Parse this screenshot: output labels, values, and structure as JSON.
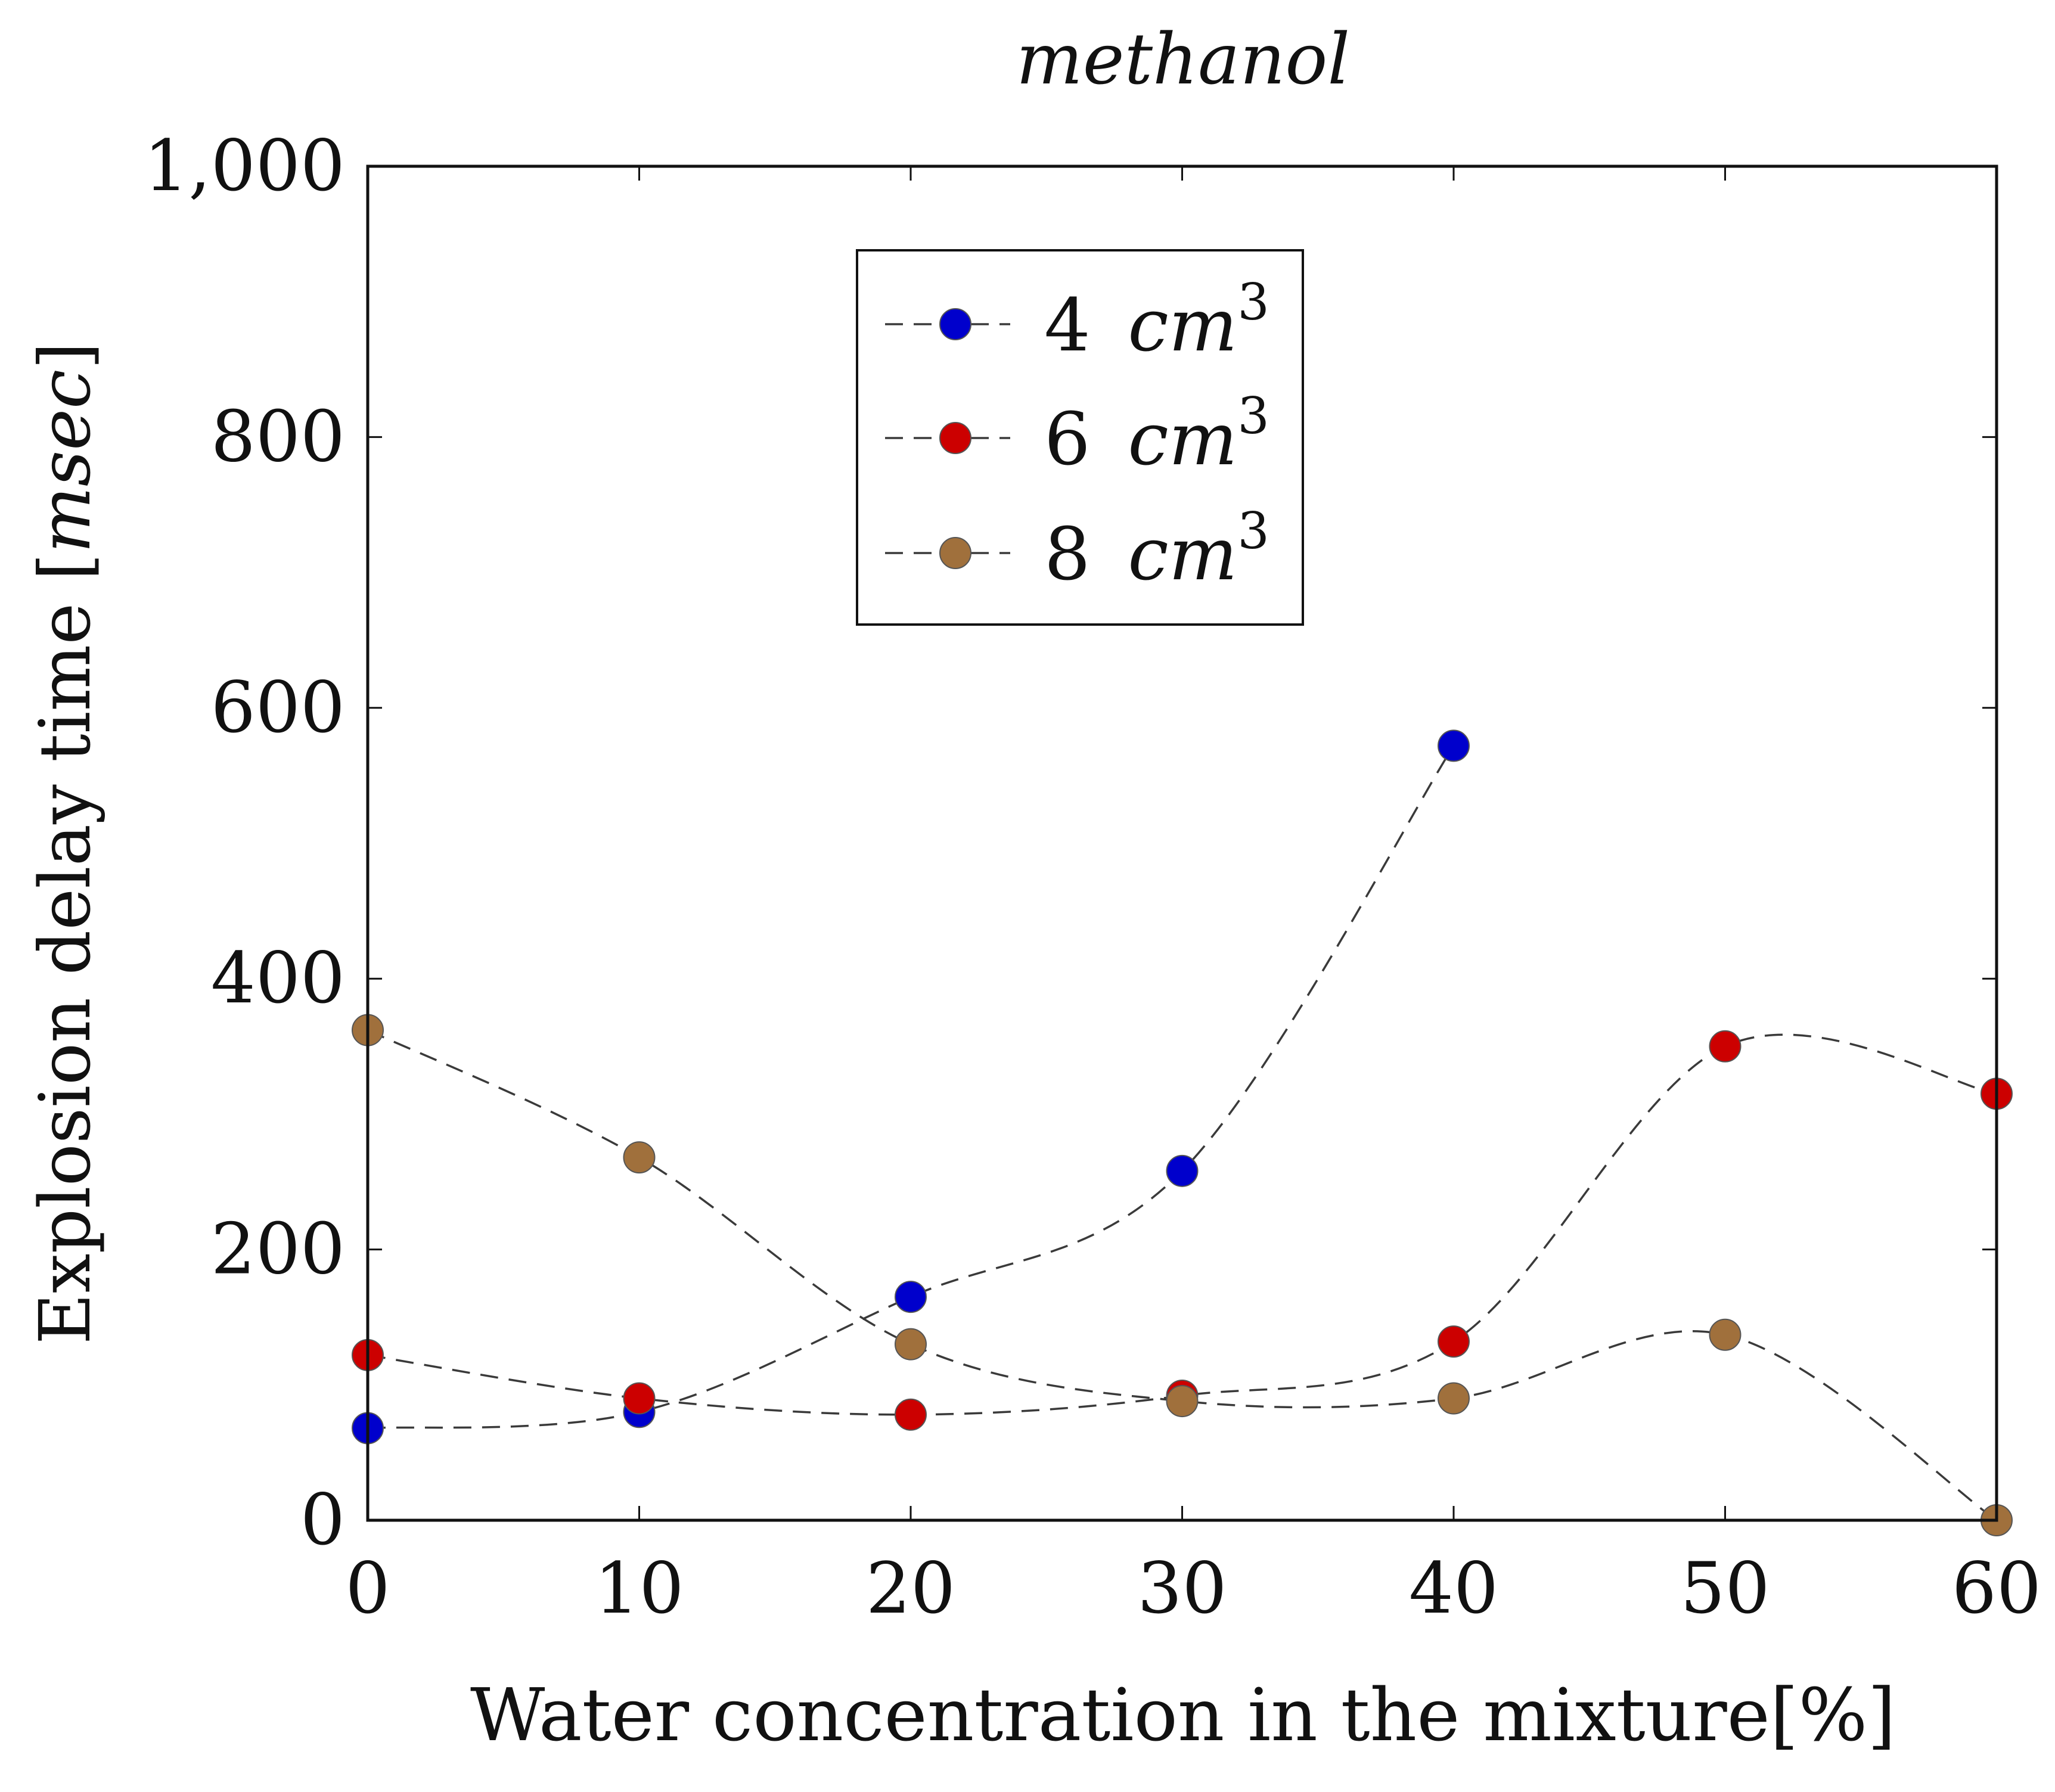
{
  "chart_data": {
    "type": "line",
    "title": "methanol",
    "xlabel": "Water concentration in the mixture[%]",
    "ylabel_prefix": "Explosion delay time ",
    "ylabel_unit": "msec",
    "xlim": [
      0,
      60
    ],
    "ylim": [
      0,
      1000
    ],
    "xticks": [
      0,
      10,
      20,
      30,
      40,
      50,
      60
    ],
    "xtick_labels": [
      "0",
      "10",
      "20",
      "30",
      "40",
      "50",
      "60"
    ],
    "yticks": [
      0,
      200,
      400,
      600,
      800,
      1000
    ],
    "ytick_labels": [
      "0",
      "200",
      "400",
      "600",
      "800",
      "1,000"
    ],
    "legend_position": "top-center",
    "line_style": "dashed smooth",
    "series": [
      {
        "name": "4",
        "unit": "cm",
        "exponent": "3",
        "color": "#0000cc",
        "x": [
          0,
          10,
          20,
          30,
          40
        ],
        "values": [
          68,
          80,
          165,
          258,
          572
        ]
      },
      {
        "name": "6",
        "unit": "cm",
        "exponent": "3",
        "color": "#cc0000",
        "x": [
          0,
          10,
          20,
          30,
          40,
          50,
          60
        ],
        "values": [
          122,
          90,
          78,
          92,
          132,
          350,
          315
        ]
      },
      {
        "name": "8",
        "unit": "cm",
        "exponent": "3",
        "color": "#a0703c",
        "x": [
          0,
          10,
          20,
          30,
          40,
          50,
          60
        ],
        "values": [
          362,
          268,
          130,
          88,
          90,
          137,
          0
        ]
      }
    ]
  }
}
